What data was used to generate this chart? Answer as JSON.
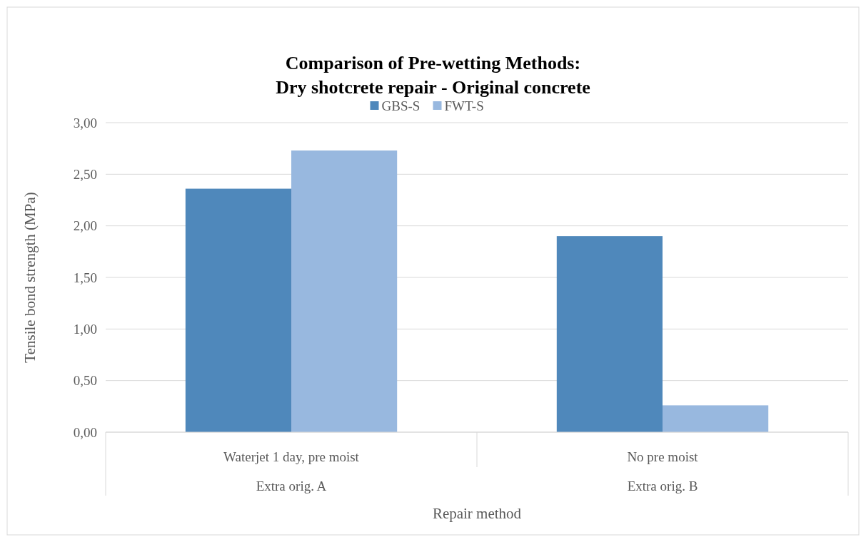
{
  "chart_data": {
    "type": "bar",
    "title": "Comparison of Pre-wetting Methods:\nDry shotcrete repair - Original concrete",
    "xlabel": "Repair method",
    "ylabel": "Tensile bond strength (MPa)",
    "categories": [
      "Waterjet 1 day, pre moist",
      "No pre moist"
    ],
    "series": [
      {
        "name": "GBS-S",
        "color": "#4f88bb",
        "values": [
          2.36,
          1.9
        ]
      },
      {
        "name": "FWT-S",
        "color": "#98b8df",
        "values": [
          2.73,
          0.26
        ]
      }
    ],
    "annotations": [
      "Extra orig. A",
      "Extra orig. B"
    ],
    "ylim": [
      0,
      3
    ],
    "yticks": [
      {
        "value": 0,
        "label": "0,00"
      },
      {
        "value": 0.5,
        "label": "0,50"
      },
      {
        "value": 1,
        "label": "1,00"
      },
      {
        "value": 1.5,
        "label": "1,50"
      },
      {
        "value": 2,
        "label": "2,00"
      },
      {
        "value": 2.5,
        "label": "2,50"
      },
      {
        "value": 3,
        "label": "3,00"
      }
    ],
    "grid": "y",
    "legend": "top"
  }
}
